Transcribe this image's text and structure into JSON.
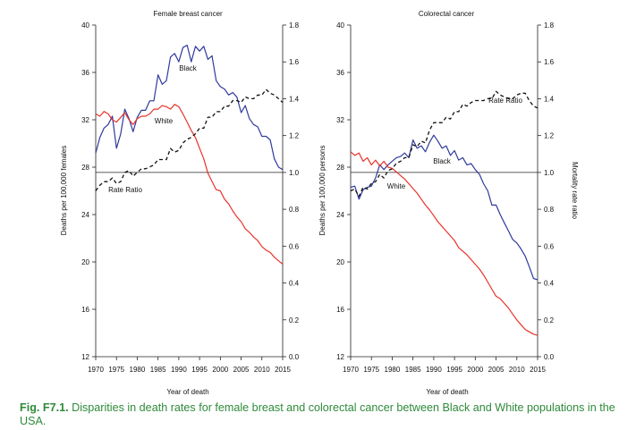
{
  "chart_data": [
    {
      "type": "line",
      "title": "Female breast cancer",
      "xlabel": "Year of death",
      "ylabel": "Deaths per 100,000 females",
      "y2label": "",
      "xlim": [
        1970,
        2015
      ],
      "ylim": [
        12,
        40
      ],
      "y2lim": [
        0.0,
        1.8
      ],
      "x_ticks": [
        "1970",
        "1975",
        "1980",
        "1985",
        "1990",
        "1995",
        "2000",
        "2005",
        "2010",
        "2015"
      ],
      "y_ticks": [
        "12",
        "16",
        "20",
        "24",
        "28",
        "32",
        "36",
        "40"
      ],
      "y2_ticks": [
        "0.0",
        "0.2",
        "0.4",
        "0.6",
        "0.8",
        "1.0",
        "1.2",
        "1.4",
        "1.6",
        "1.8"
      ],
      "reference_line": 1.0,
      "series": [
        {
          "name": "Black",
          "axis": "left",
          "color": "#2e3a9c",
          "dash": false,
          "x": [
            1970,
            1971,
            1972,
            1973,
            1974,
            1975,
            1976,
            1977,
            1978,
            1979,
            1980,
            1981,
            1982,
            1983,
            1984,
            1985,
            1986,
            1987,
            1988,
            1989,
            1990,
            1991,
            1992,
            1993,
            1994,
            1995,
            1996,
            1997,
            1998,
            1999,
            2000,
            2001,
            2002,
            2003,
            2004,
            2005,
            2006,
            2007,
            2008,
            2009,
            2010,
            2011,
            2012,
            2013,
            2014,
            2015
          ],
          "values": [
            29.2,
            30.5,
            31.3,
            31.6,
            32.3,
            29.6,
            30.8,
            32.9,
            32.1,
            31.0,
            32.2,
            32.8,
            32.8,
            33.6,
            33.6,
            35.8,
            35.0,
            35.3,
            37.3,
            37.6,
            36.9,
            38.1,
            38.3,
            36.9,
            38.2,
            37.8,
            38.2,
            37.1,
            37.4,
            35.3,
            34.8,
            34.6,
            34.1,
            34.3,
            33.9,
            32.6,
            33.2,
            32.1,
            31.6,
            31.4,
            30.6,
            30.6,
            30.3,
            28.7,
            28.0,
            27.8
          ]
        },
        {
          "name": "White",
          "axis": "left",
          "color": "#e8332a",
          "dash": false,
          "x": [
            1970,
            1971,
            1972,
            1973,
            1974,
            1975,
            1976,
            1977,
            1978,
            1979,
            1980,
            1981,
            1982,
            1983,
            1984,
            1985,
            1986,
            1987,
            1988,
            1989,
            1990,
            1991,
            1992,
            1993,
            1994,
            1995,
            1996,
            1997,
            1998,
            1999,
            2000,
            2001,
            2002,
            2003,
            2004,
            2005,
            2006,
            2007,
            2008,
            2009,
            2010,
            2011,
            2012,
            2013,
            2014,
            2015
          ],
          "values": [
            32.5,
            32.3,
            32.7,
            32.5,
            32.0,
            31.8,
            32.2,
            32.6,
            32.0,
            31.6,
            32.1,
            32.3,
            32.3,
            32.5,
            32.9,
            32.9,
            33.2,
            33.1,
            32.9,
            33.3,
            33.1,
            32.5,
            31.8,
            31.1,
            30.5,
            29.6,
            28.7,
            27.5,
            26.8,
            26.1,
            26.0,
            25.3,
            24.9,
            24.3,
            23.8,
            23.4,
            22.8,
            22.5,
            22.1,
            21.8,
            21.3,
            21.0,
            20.8,
            20.4,
            20.1,
            19.8
          ]
        },
        {
          "name": "Rate Ratio",
          "axis": "right",
          "color": "#111111",
          "dash": true,
          "x": [
            1970,
            1971,
            1972,
            1973,
            1974,
            1975,
            1976,
            1977,
            1978,
            1979,
            1980,
            1981,
            1982,
            1983,
            1984,
            1985,
            1986,
            1987,
            1988,
            1989,
            1990,
            1991,
            1992,
            1993,
            1994,
            1995,
            1996,
            1997,
            1998,
            1999,
            2000,
            2001,
            2002,
            2003,
            2004,
            2005,
            2006,
            2007,
            2008,
            2009,
            2010,
            2011,
            2012,
            2013,
            2014,
            2015
          ],
          "values": [
            0.9,
            0.93,
            0.95,
            0.95,
            0.97,
            0.94,
            0.95,
            1.0,
            1.01,
            0.98,
            1.0,
            1.02,
            1.02,
            1.03,
            1.04,
            1.07,
            1.07,
            1.07,
            1.13,
            1.11,
            1.12,
            1.16,
            1.18,
            1.19,
            1.21,
            1.24,
            1.24,
            1.3,
            1.3,
            1.33,
            1.33,
            1.36,
            1.36,
            1.39,
            1.39,
            1.38,
            1.41,
            1.4,
            1.4,
            1.42,
            1.42,
            1.45,
            1.43,
            1.42,
            1.4,
            1.38
          ]
        }
      ],
      "annotations": [
        "Black",
        "White",
        "Rate Ratio"
      ]
    },
    {
      "type": "line",
      "title": "Colorectal cancer",
      "xlabel": "Year of death",
      "ylabel": "Deaths per 100,000 persons",
      "y2label": "Mortality rate ratio",
      "xlim": [
        1970,
        2015
      ],
      "ylim": [
        12,
        40
      ],
      "y2lim": [
        0.0,
        1.8
      ],
      "x_ticks": [
        "1970",
        "1975",
        "1980",
        "1985",
        "1990",
        "1995",
        "2000",
        "2005",
        "2010",
        "2015"
      ],
      "y_ticks": [
        "12",
        "16",
        "20",
        "24",
        "28",
        "32",
        "36",
        "40"
      ],
      "y2_ticks": [
        "0.0",
        "0.2",
        "0.4",
        "0.6",
        "0.8",
        "1.0",
        "1.2",
        "1.4",
        "1.6",
        "1.8"
      ],
      "reference_line": 1.0,
      "series": [
        {
          "name": "Black",
          "axis": "left",
          "color": "#2e3a9c",
          "dash": false,
          "x": [
            1970,
            1971,
            1972,
            1973,
            1974,
            1975,
            1976,
            1977,
            1978,
            1979,
            1980,
            1981,
            1982,
            1983,
            1984,
            1985,
            1986,
            1987,
            1988,
            1989,
            1990,
            1991,
            1992,
            1993,
            1994,
            1995,
            1996,
            1997,
            1998,
            1999,
            2000,
            2001,
            2002,
            2003,
            2004,
            2005,
            2006,
            2007,
            2008,
            2009,
            2010,
            2011,
            2012,
            2013,
            2014,
            2015
          ],
          "values": [
            26.3,
            26.4,
            25.3,
            26.1,
            26.3,
            26.4,
            27.1,
            28.2,
            27.8,
            28.2,
            28.5,
            28.8,
            28.9,
            29.2,
            28.8,
            30.3,
            29.6,
            29.8,
            29.3,
            30.1,
            30.7,
            30.2,
            29.6,
            29.8,
            29.0,
            29.4,
            28.6,
            28.8,
            28.2,
            28.3,
            27.8,
            27.4,
            26.6,
            26.0,
            24.8,
            24.8,
            24.0,
            23.3,
            22.6,
            21.9,
            21.6,
            21.1,
            20.5,
            19.6,
            18.6,
            18.5
          ]
        },
        {
          "name": "White",
          "axis": "left",
          "color": "#e8332a",
          "dash": false,
          "x": [
            1970,
            1971,
            1972,
            1973,
            1974,
            1975,
            1976,
            1977,
            1978,
            1979,
            1980,
            1981,
            1982,
            1983,
            1984,
            1985,
            1986,
            1987,
            1988,
            1989,
            1990,
            1991,
            1992,
            1993,
            1994,
            1995,
            1996,
            1997,
            1998,
            1999,
            2000,
            2001,
            2002,
            2003,
            2004,
            2005,
            2006,
            2007,
            2008,
            2009,
            2010,
            2011,
            2012,
            2013,
            2014,
            2015
          ],
          "values": [
            29.3,
            29.0,
            29.2,
            28.5,
            28.8,
            28.2,
            28.6,
            28.1,
            28.5,
            28.0,
            27.9,
            27.6,
            27.3,
            27.0,
            26.6,
            26.2,
            25.8,
            25.3,
            24.8,
            24.4,
            23.9,
            23.4,
            23.0,
            22.6,
            22.2,
            21.8,
            21.2,
            20.9,
            20.6,
            20.2,
            19.8,
            19.4,
            18.9,
            18.3,
            17.7,
            17.1,
            16.9,
            16.5,
            16.1,
            15.6,
            15.1,
            14.7,
            14.3,
            14.1,
            13.9,
            13.8
          ]
        },
        {
          "name": "Rate Ratio",
          "axis": "right",
          "color": "#111111",
          "dash": true,
          "x": [
            1970,
            1971,
            1972,
            1973,
            1974,
            1975,
            1976,
            1977,
            1978,
            1979,
            1980,
            1981,
            1982,
            1983,
            1984,
            1985,
            1986,
            1987,
            1988,
            1989,
            1990,
            1991,
            1992,
            1993,
            1994,
            1995,
            1996,
            1997,
            1998,
            1999,
            2000,
            2001,
            2002,
            2003,
            2004,
            2005,
            2006,
            2007,
            2008,
            2009,
            2010,
            2011,
            2012,
            2013,
            2014,
            2015
          ],
          "values": [
            0.9,
            0.91,
            0.87,
            0.92,
            0.91,
            0.94,
            0.95,
            0.99,
            0.97,
            1.01,
            1.02,
            1.05,
            1.06,
            1.08,
            1.08,
            1.15,
            1.14,
            1.17,
            1.16,
            1.23,
            1.27,
            1.27,
            1.27,
            1.3,
            1.29,
            1.33,
            1.33,
            1.37,
            1.36,
            1.38,
            1.39,
            1.39,
            1.39,
            1.4,
            1.4,
            1.44,
            1.42,
            1.41,
            1.4,
            1.4,
            1.42,
            1.43,
            1.43,
            1.39,
            1.36,
            1.35
          ]
        }
      ],
      "annotations": [
        "Black",
        "White",
        "Rate Ratio"
      ]
    }
  ],
  "caption": {
    "label": "Fig. F7.1.",
    "text": " Disparities in death rates for female breast and colorectal cancer between Black and White populations in the USA."
  }
}
